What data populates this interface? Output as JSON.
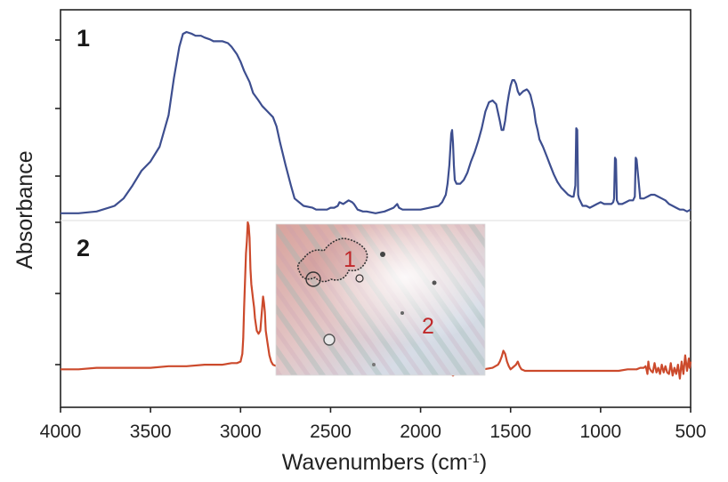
{
  "chart_data": {
    "type": "line",
    "xlabel": "Wavenumbers (cm",
    "xlabel_sup": "-1",
    "xlabel_close": ")",
    "ylabel": "Absorbance",
    "xlim": [
      4000,
      500
    ],
    "x_ticks": [
      "4000",
      "3500",
      "3000",
      "2500",
      "2000",
      "1500",
      "1000",
      "500"
    ],
    "panel_labels": [
      "1",
      "2"
    ],
    "inset_labels": [
      "1",
      "2"
    ],
    "colors": {
      "series_1": "#3d4e8f",
      "series_2": "#cc4a2c"
    },
    "series": [
      {
        "x": [
          4000,
          3900,
          3800,
          3700,
          3650,
          3600,
          3550,
          3500,
          3450,
          3400,
          3370,
          3340,
          3320,
          3300,
          3270,
          3250,
          3220,
          3200,
          3170,
          3150,
          3130,
          3100,
          3070,
          3050,
          3020,
          3000,
          2980,
          2950,
          2930,
          2900,
          2880,
          2850,
          2820,
          2800,
          2780,
          2750,
          2720,
          2700,
          2650,
          2600,
          2580,
          2550,
          2520,
          2500,
          2480,
          2460,
          2450,
          2430,
          2400,
          2380,
          2370,
          2350,
          2320,
          2300,
          2250,
          2200,
          2150,
          2130,
          2120,
          2100,
          2050,
          2000,
          1950,
          1900,
          1880,
          1860,
          1850,
          1840,
          1830,
          1825,
          1820,
          1815,
          1810,
          1800,
          1780,
          1760,
          1740,
          1720,
          1700,
          1680,
          1660,
          1640,
          1620,
          1600,
          1580,
          1560,
          1550,
          1540,
          1530,
          1520,
          1510,
          1500,
          1490,
          1480,
          1470,
          1460,
          1450,
          1440,
          1430,
          1410,
          1400,
          1390,
          1370,
          1360,
          1350,
          1340,
          1320,
          1300,
          1280,
          1260,
          1240,
          1220,
          1200,
          1180,
          1160,
          1150,
          1140,
          1135,
          1130,
          1125,
          1120,
          1110,
          1100,
          1080,
          1060,
          1040,
          1020,
          1000,
          980,
          960,
          940,
          930,
          925,
          920,
          915,
          910,
          900,
          880,
          860,
          840,
          820,
          815,
          810,
          805,
          800,
          780,
          760,
          740,
          720,
          700,
          680,
          660,
          640,
          620,
          600,
          580,
          560,
          540,
          520,
          500
        ],
        "y": [
          0.02,
          0.02,
          0.03,
          0.06,
          0.1,
          0.17,
          0.25,
          0.3,
          0.38,
          0.55,
          0.75,
          0.92,
          0.99,
          1.0,
          0.99,
          0.98,
          0.98,
          0.97,
          0.96,
          0.95,
          0.95,
          0.95,
          0.94,
          0.92,
          0.88,
          0.84,
          0.79,
          0.73,
          0.67,
          0.63,
          0.6,
          0.57,
          0.54,
          0.49,
          0.4,
          0.28,
          0.17,
          0.1,
          0.06,
          0.05,
          0.04,
          0.04,
          0.04,
          0.05,
          0.05,
          0.06,
          0.08,
          0.07,
          0.09,
          0.08,
          0.07,
          0.04,
          0.03,
          0.03,
          0.02,
          0.03,
          0.05,
          0.07,
          0.05,
          0.04,
          0.04,
          0.04,
          0.05,
          0.06,
          0.08,
          0.12,
          0.18,
          0.28,
          0.45,
          0.47,
          0.4,
          0.28,
          0.2,
          0.18,
          0.18,
          0.2,
          0.24,
          0.3,
          0.35,
          0.41,
          0.48,
          0.57,
          0.62,
          0.63,
          0.61,
          0.52,
          0.47,
          0.47,
          0.52,
          0.6,
          0.66,
          0.71,
          0.74,
          0.74,
          0.72,
          0.68,
          0.66,
          0.67,
          0.68,
          0.69,
          0.68,
          0.66,
          0.58,
          0.51,
          0.47,
          0.42,
          0.38,
          0.33,
          0.28,
          0.23,
          0.19,
          0.16,
          0.14,
          0.12,
          0.11,
          0.11,
          0.17,
          0.48,
          0.47,
          0.12,
          0.1,
          0.08,
          0.06,
          0.06,
          0.05,
          0.06,
          0.07,
          0.08,
          0.07,
          0.07,
          0.07,
          0.08,
          0.1,
          0.32,
          0.31,
          0.09,
          0.07,
          0.07,
          0.08,
          0.09,
          0.09,
          0.1,
          0.11,
          0.32,
          0.31,
          0.1,
          0.1,
          0.11,
          0.12,
          0.12,
          0.11,
          0.1,
          0.09,
          0.07,
          0.06,
          0.05,
          0.04,
          0.04,
          0.03,
          0.04
        ]
      },
      {
        "x": [
          4000,
          3900,
          3800,
          3700,
          3600,
          3500,
          3400,
          3300,
          3200,
          3100,
          3050,
          3020,
          3000,
          2990,
          2985,
          2980,
          2970,
          2965,
          2960,
          2955,
          2950,
          2945,
          2940,
          2935,
          2930,
          2925,
          2920,
          2910,
          2900,
          2890,
          2880,
          2875,
          2870,
          2865,
          2860,
          2850,
          2840,
          2830,
          2820,
          2800,
          2700,
          2600,
          2500,
          2400,
          2300,
          2200,
          2100,
          2000,
          1900,
          1850,
          1830,
          1820,
          1810,
          1800,
          1780,
          1750,
          1700,
          1650,
          1600,
          1570,
          1560,
          1550,
          1540,
          1530,
          1520,
          1510,
          1500,
          1490,
          1470,
          1460,
          1450,
          1440,
          1420,
          1400,
          1380,
          1360,
          1340,
          1320,
          1300,
          1250,
          1200,
          1150,
          1100,
          1050,
          1000,
          950,
          900,
          850,
          800,
          780,
          760,
          750,
          745,
          740,
          735,
          730,
          720,
          710,
          700,
          690,
          680,
          670,
          660,
          650,
          640,
          630,
          620,
          610,
          600,
          590,
          580,
          570,
          560,
          550,
          540,
          530,
          520,
          510,
          505,
          500
        ],
        "y": [
          0.05,
          0.05,
          0.06,
          0.06,
          0.06,
          0.06,
          0.07,
          0.07,
          0.08,
          0.08,
          0.09,
          0.09,
          0.1,
          0.15,
          0.25,
          0.45,
          0.8,
          0.88,
          1.0,
          0.98,
          0.9,
          0.7,
          0.6,
          0.55,
          0.5,
          0.45,
          0.38,
          0.3,
          0.28,
          0.3,
          0.45,
          0.52,
          0.48,
          0.42,
          0.3,
          0.22,
          0.14,
          0.1,
          0.08,
          0.07,
          0.05,
          0.05,
          0.04,
          0.04,
          0.04,
          0.04,
          0.04,
          0.04,
          0.04,
          0.03,
          0.02,
          0.01,
          0.02,
          0.03,
          0.04,
          0.04,
          0.05,
          0.05,
          0.06,
          0.08,
          0.1,
          0.13,
          0.17,
          0.15,
          0.1,
          0.07,
          0.05,
          0.06,
          0.08,
          0.1,
          0.07,
          0.05,
          0.04,
          0.04,
          0.04,
          0.04,
          0.04,
          0.04,
          0.04,
          0.04,
          0.04,
          0.04,
          0.04,
          0.04,
          0.04,
          0.04,
          0.04,
          0.05,
          0.05,
          0.06,
          0.06,
          0.07,
          0.05,
          0.02,
          0.1,
          0.06,
          0.04,
          0.03,
          0.09,
          0.03,
          0.06,
          0.02,
          0.08,
          0.03,
          0.07,
          0.03,
          0.02,
          0.09,
          0.01,
          0.06,
          0.02,
          0.08,
          -0.01,
          0.1,
          0.02,
          0.14,
          0.04,
          0.12,
          0.06,
          0.1
        ]
      }
    ]
  }
}
